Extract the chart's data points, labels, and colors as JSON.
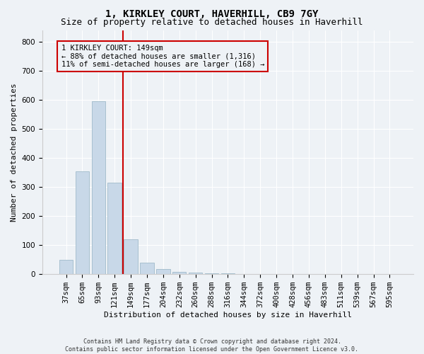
{
  "title": "1, KIRKLEY COURT, HAVERHILL, CB9 7GY",
  "subtitle": "Size of property relative to detached houses in Haverhill",
  "xlabel": "Distribution of detached houses by size in Haverhill",
  "ylabel": "Number of detached properties",
  "annotation_line1": "1 KIRKLEY COURT: 149sqm",
  "annotation_line2": "← 88% of detached houses are smaller (1,316)",
  "annotation_line3": "11% of semi-detached houses are larger (168) →",
  "footer_line1": "Contains HM Land Registry data © Crown copyright and database right 2024.",
  "footer_line2": "Contains public sector information licensed under the Open Government Licence v3.0.",
  "bar_categories": [
    "37sqm",
    "65sqm",
    "93sqm",
    "121sqm",
    "149sqm",
    "177sqm",
    "204sqm",
    "232sqm",
    "260sqm",
    "288sqm",
    "316sqm",
    "344sqm",
    "372sqm",
    "400sqm",
    "428sqm",
    "456sqm",
    "483sqm",
    "511sqm",
    "539sqm",
    "567sqm",
    "595sqm"
  ],
  "bar_values": [
    50,
    355,
    595,
    315,
    120,
    40,
    18,
    8,
    5,
    3,
    2,
    1,
    1,
    0,
    0,
    0,
    0,
    0,
    0,
    0,
    0
  ],
  "bar_color": "#c8d8e8",
  "bar_edgecolor": "#a8c0d0",
  "vline_color": "#cc0000",
  "vline_x": 3.5,
  "annotation_box_edgecolor": "#cc0000",
  "background_color": "#eef2f6",
  "ylim": [
    0,
    840
  ],
  "yticks": [
    0,
    100,
    200,
    300,
    400,
    500,
    600,
    700,
    800
  ],
  "title_fontsize": 10,
  "subtitle_fontsize": 9,
  "ylabel_fontsize": 8,
  "xlabel_fontsize": 8,
  "annot_fontsize": 7.5,
  "footer_fontsize": 6,
  "tick_fontsize": 7.5
}
